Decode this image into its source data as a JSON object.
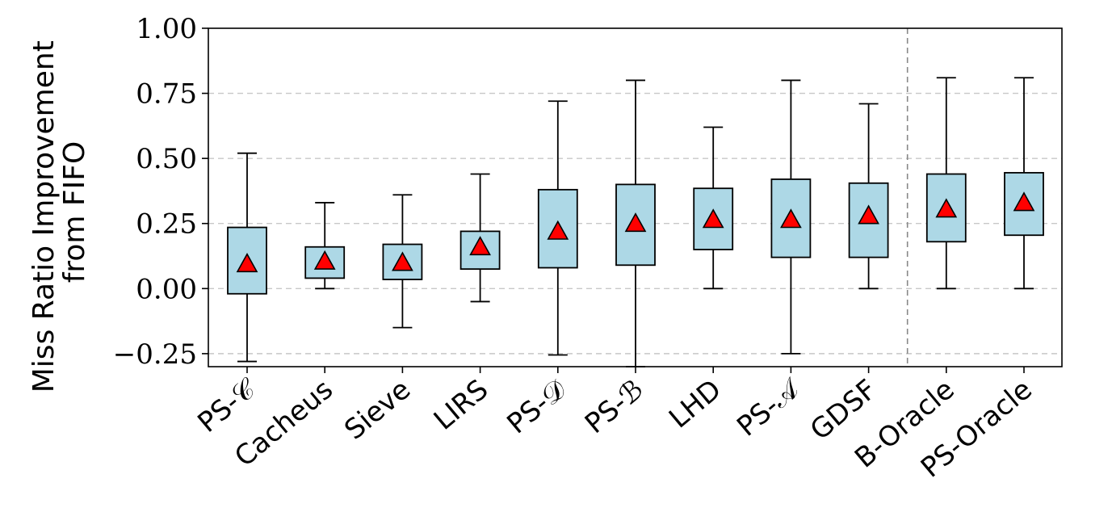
{
  "chart_data": {
    "type": "box",
    "title": "",
    "xlabel": "",
    "ylabel_lines": [
      "Miss Ratio Improvement",
      "from FIFO"
    ],
    "ylim": [
      -0.3,
      1.0
    ],
    "yticks": [
      -0.25,
      0.0,
      0.25,
      0.5,
      0.75,
      1.0
    ],
    "ytick_labels": [
      "−0.25",
      "0.00",
      "0.25",
      "0.50",
      "0.75",
      "1.00"
    ],
    "grid": "horizontal-dashed",
    "separator_after_index": 8,
    "colors": {
      "box_fill": "#add8e6",
      "mean_marker": "#ff0000",
      "grid": "#c8c8c8",
      "separator": "#888888"
    },
    "categories": [
      "PS-𝒞",
      "Cacheus",
      "Sieve",
      "LIRS",
      "PS-𝒟",
      "PS-ℬ",
      "LHD",
      "PS-𝒜",
      "GDSF",
      "B-Oracle",
      "PS-Oracle"
    ],
    "boxes": [
      {
        "whisker_low": -0.28,
        "q1": -0.02,
        "q3": 0.235,
        "whisker_high": 0.52,
        "mean": 0.095
      },
      {
        "whisker_low": 0.0,
        "q1": 0.04,
        "q3": 0.16,
        "whisker_high": 0.33,
        "mean": 0.105
      },
      {
        "whisker_low": -0.15,
        "q1": 0.035,
        "q3": 0.17,
        "whisker_high": 0.36,
        "mean": 0.1
      },
      {
        "whisker_low": -0.05,
        "q1": 0.075,
        "q3": 0.22,
        "whisker_high": 0.44,
        "mean": 0.16
      },
      {
        "whisker_low": -0.255,
        "q1": 0.08,
        "q3": 0.38,
        "whisker_high": 0.72,
        "mean": 0.22
      },
      {
        "whisker_low": -0.3,
        "q1": 0.09,
        "q3": 0.4,
        "whisker_high": 0.8,
        "mean": 0.25
      },
      {
        "whisker_low": 0.0,
        "q1": 0.15,
        "q3": 0.385,
        "whisker_high": 0.62,
        "mean": 0.265
      },
      {
        "whisker_low": -0.25,
        "q1": 0.12,
        "q3": 0.42,
        "whisker_high": 0.8,
        "mean": 0.265
      },
      {
        "whisker_low": 0.0,
        "q1": 0.12,
        "q3": 0.405,
        "whisker_high": 0.71,
        "mean": 0.28
      },
      {
        "whisker_low": 0.0,
        "q1": 0.18,
        "q3": 0.44,
        "whisker_high": 0.81,
        "mean": 0.305
      },
      {
        "whisker_low": 0.0,
        "q1": 0.205,
        "q3": 0.445,
        "whisker_high": 0.81,
        "mean": 0.33
      }
    ]
  }
}
